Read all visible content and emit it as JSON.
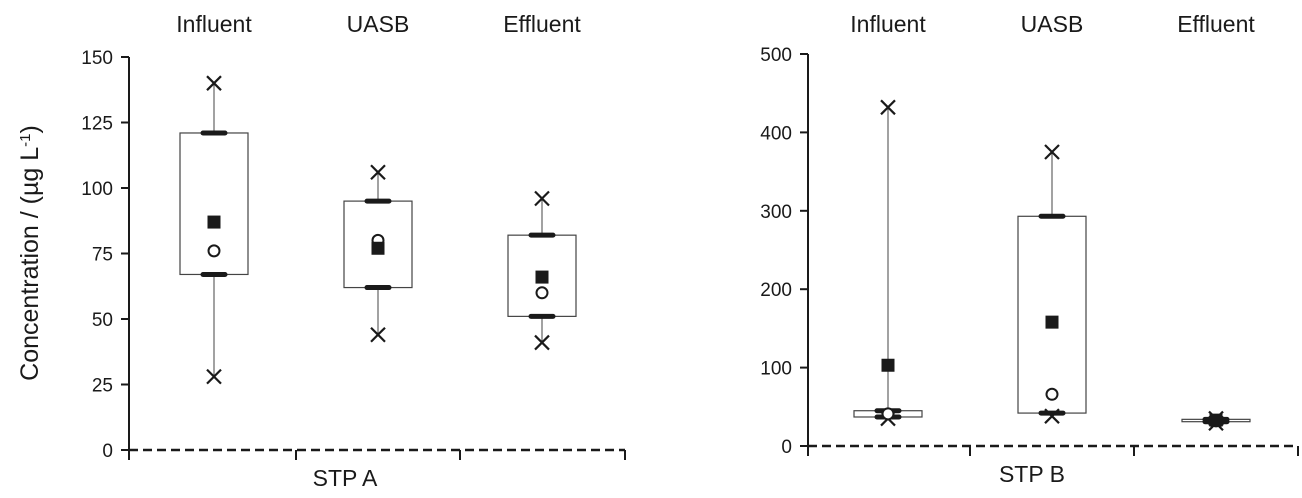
{
  "chart_data": {
    "type": "boxplot",
    "ylabel": "Concentration / (µg L",
    "ylabel_sup": "-1",
    "ylabel_close": ")",
    "markers_legend": {
      "box_edges": "quartile dash",
      "min_max": "x",
      "mean": "filled square",
      "median": "open circle"
    },
    "panels": [
      {
        "panel_label": "STP A",
        "ylim": [
          0,
          150
        ],
        "yticks": [
          0,
          25,
          50,
          75,
          100,
          125,
          150
        ],
        "categories": [
          "Influent",
          "UASB",
          "Effluent"
        ],
        "boxes": [
          {
            "category": "Influent",
            "min": 28,
            "q1": 67,
            "median": 76,
            "mean": 87,
            "q3": 121,
            "max": 140
          },
          {
            "category": "UASB",
            "min": 44,
            "q1": 62,
            "median": 80,
            "mean": 77,
            "q3": 95,
            "max": 106
          },
          {
            "category": "Effluent",
            "min": 41,
            "q1": 51,
            "median": 60,
            "mean": 66,
            "q3": 82,
            "max": 96
          }
        ]
      },
      {
        "panel_label": "STP B",
        "ylim": [
          0,
          500
        ],
        "yticks": [
          0,
          100,
          200,
          300,
          400,
          500
        ],
        "categories": [
          "Influent",
          "UASB",
          "Effluent"
        ],
        "boxes": [
          {
            "category": "Influent",
            "min": 35,
            "q1": 37,
            "median": 41,
            "mean": 103,
            "q3": 45,
            "max": 432
          },
          {
            "category": "UASB",
            "min": 38,
            "q1": 42,
            "median": 66,
            "mean": 158,
            "q3": 293,
            "max": 375
          },
          {
            "category": "Effluent",
            "min": 29,
            "q1": 31,
            "median": 32,
            "mean": 33,
            "q3": 34,
            "max": 35
          }
        ]
      }
    ]
  }
}
